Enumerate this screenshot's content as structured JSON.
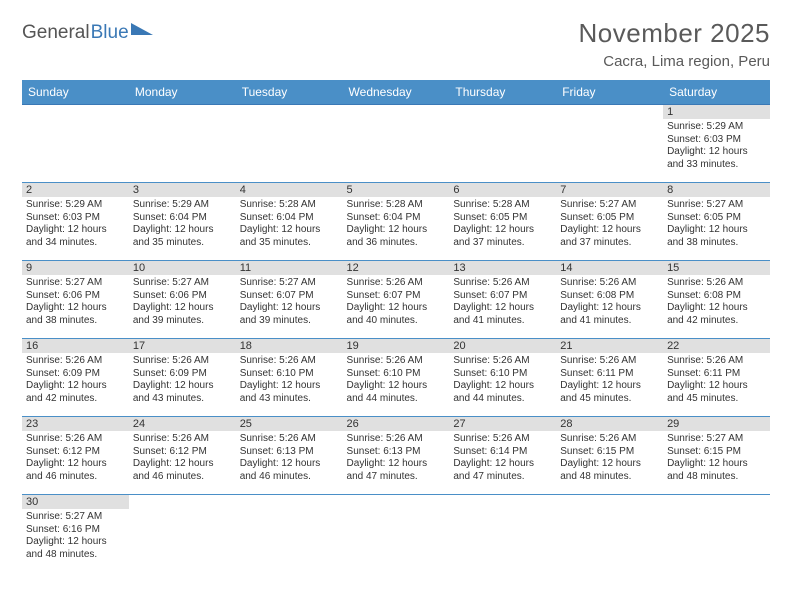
{
  "logo": {
    "text1": "General",
    "text2": "Blue"
  },
  "title": "November 2025",
  "location": "Cacra, Lima region, Peru",
  "colors": {
    "header_bg": "#4a8fc7",
    "header_text": "#ffffff",
    "border": "#4a8fc7",
    "daynum_bg": "#e0e0e0",
    "text": "#333333",
    "logo_accent": "#3a78b5"
  },
  "daynames": [
    "Sunday",
    "Monday",
    "Tuesday",
    "Wednesday",
    "Thursday",
    "Friday",
    "Saturday"
  ],
  "weeks": [
    [
      null,
      null,
      null,
      null,
      null,
      null,
      {
        "n": "1",
        "sr": "5:29 AM",
        "ss": "6:03 PM",
        "dl": "12 hours and 33 minutes."
      }
    ],
    [
      {
        "n": "2",
        "sr": "5:29 AM",
        "ss": "6:03 PM",
        "dl": "12 hours and 34 minutes."
      },
      {
        "n": "3",
        "sr": "5:29 AM",
        "ss": "6:04 PM",
        "dl": "12 hours and 35 minutes."
      },
      {
        "n": "4",
        "sr": "5:28 AM",
        "ss": "6:04 PM",
        "dl": "12 hours and 35 minutes."
      },
      {
        "n": "5",
        "sr": "5:28 AM",
        "ss": "6:04 PM",
        "dl": "12 hours and 36 minutes."
      },
      {
        "n": "6",
        "sr": "5:28 AM",
        "ss": "6:05 PM",
        "dl": "12 hours and 37 minutes."
      },
      {
        "n": "7",
        "sr": "5:27 AM",
        "ss": "6:05 PM",
        "dl": "12 hours and 37 minutes."
      },
      {
        "n": "8",
        "sr": "5:27 AM",
        "ss": "6:05 PM",
        "dl": "12 hours and 38 minutes."
      }
    ],
    [
      {
        "n": "9",
        "sr": "5:27 AM",
        "ss": "6:06 PM",
        "dl": "12 hours and 38 minutes."
      },
      {
        "n": "10",
        "sr": "5:27 AM",
        "ss": "6:06 PM",
        "dl": "12 hours and 39 minutes."
      },
      {
        "n": "11",
        "sr": "5:27 AM",
        "ss": "6:07 PM",
        "dl": "12 hours and 39 minutes."
      },
      {
        "n": "12",
        "sr": "5:26 AM",
        "ss": "6:07 PM",
        "dl": "12 hours and 40 minutes."
      },
      {
        "n": "13",
        "sr": "5:26 AM",
        "ss": "6:07 PM",
        "dl": "12 hours and 41 minutes."
      },
      {
        "n": "14",
        "sr": "5:26 AM",
        "ss": "6:08 PM",
        "dl": "12 hours and 41 minutes."
      },
      {
        "n": "15",
        "sr": "5:26 AM",
        "ss": "6:08 PM",
        "dl": "12 hours and 42 minutes."
      }
    ],
    [
      {
        "n": "16",
        "sr": "5:26 AM",
        "ss": "6:09 PM",
        "dl": "12 hours and 42 minutes."
      },
      {
        "n": "17",
        "sr": "5:26 AM",
        "ss": "6:09 PM",
        "dl": "12 hours and 43 minutes."
      },
      {
        "n": "18",
        "sr": "5:26 AM",
        "ss": "6:10 PM",
        "dl": "12 hours and 43 minutes."
      },
      {
        "n": "19",
        "sr": "5:26 AM",
        "ss": "6:10 PM",
        "dl": "12 hours and 44 minutes."
      },
      {
        "n": "20",
        "sr": "5:26 AM",
        "ss": "6:10 PM",
        "dl": "12 hours and 44 minutes."
      },
      {
        "n": "21",
        "sr": "5:26 AM",
        "ss": "6:11 PM",
        "dl": "12 hours and 45 minutes."
      },
      {
        "n": "22",
        "sr": "5:26 AM",
        "ss": "6:11 PM",
        "dl": "12 hours and 45 minutes."
      }
    ],
    [
      {
        "n": "23",
        "sr": "5:26 AM",
        "ss": "6:12 PM",
        "dl": "12 hours and 46 minutes."
      },
      {
        "n": "24",
        "sr": "5:26 AM",
        "ss": "6:12 PM",
        "dl": "12 hours and 46 minutes."
      },
      {
        "n": "25",
        "sr": "5:26 AM",
        "ss": "6:13 PM",
        "dl": "12 hours and 46 minutes."
      },
      {
        "n": "26",
        "sr": "5:26 AM",
        "ss": "6:13 PM",
        "dl": "12 hours and 47 minutes."
      },
      {
        "n": "27",
        "sr": "5:26 AM",
        "ss": "6:14 PM",
        "dl": "12 hours and 47 minutes."
      },
      {
        "n": "28",
        "sr": "5:26 AM",
        "ss": "6:15 PM",
        "dl": "12 hours and 48 minutes."
      },
      {
        "n": "29",
        "sr": "5:27 AM",
        "ss": "6:15 PM",
        "dl": "12 hours and 48 minutes."
      }
    ],
    [
      {
        "n": "30",
        "sr": "5:27 AM",
        "ss": "6:16 PM",
        "dl": "12 hours and 48 minutes."
      },
      null,
      null,
      null,
      null,
      null,
      null
    ]
  ],
  "labels": {
    "sunrise": "Sunrise: ",
    "sunset": "Sunset: ",
    "daylight": "Daylight: "
  }
}
